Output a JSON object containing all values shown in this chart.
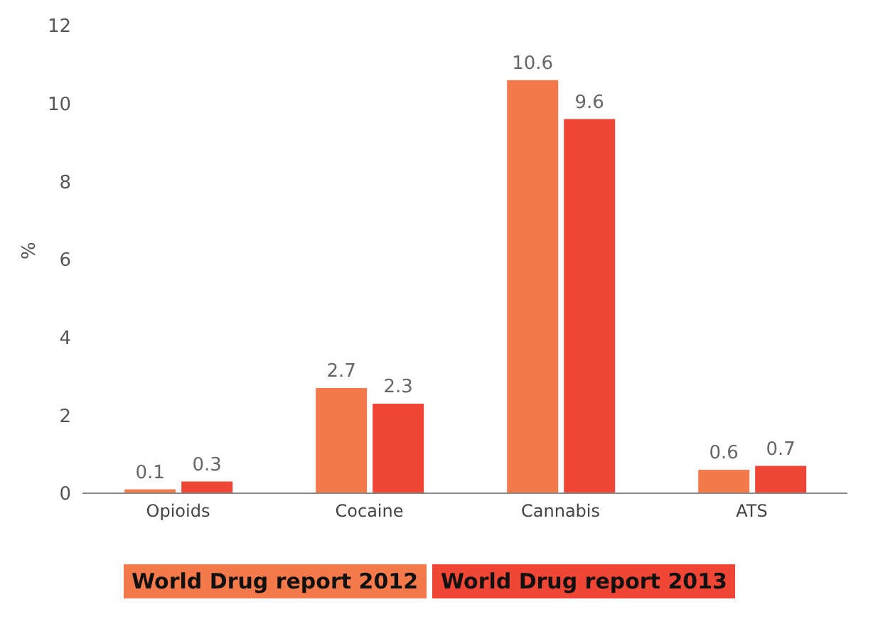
{
  "chart_data": {
    "type": "bar",
    "ylabel": "%",
    "categories": [
      "Opioids",
      "Cocaine",
      "Cannabis",
      "ATS"
    ],
    "series": [
      {
        "name": "World Drug report 2012",
        "color": "#f47a4c",
        "values": [
          0.1,
          2.7,
          10.6,
          0.6
        ]
      },
      {
        "name": "World Drug report 2013",
        "color": "#ef4635",
        "values": [
          0.3,
          2.3,
          9.6,
          0.7
        ]
      }
    ],
    "ylim": [
      0,
      12
    ],
    "yticks": [
      0,
      2,
      4,
      6,
      8,
      10,
      12
    ],
    "grid": false,
    "legend": "bottom",
    "data_labels": true
  }
}
